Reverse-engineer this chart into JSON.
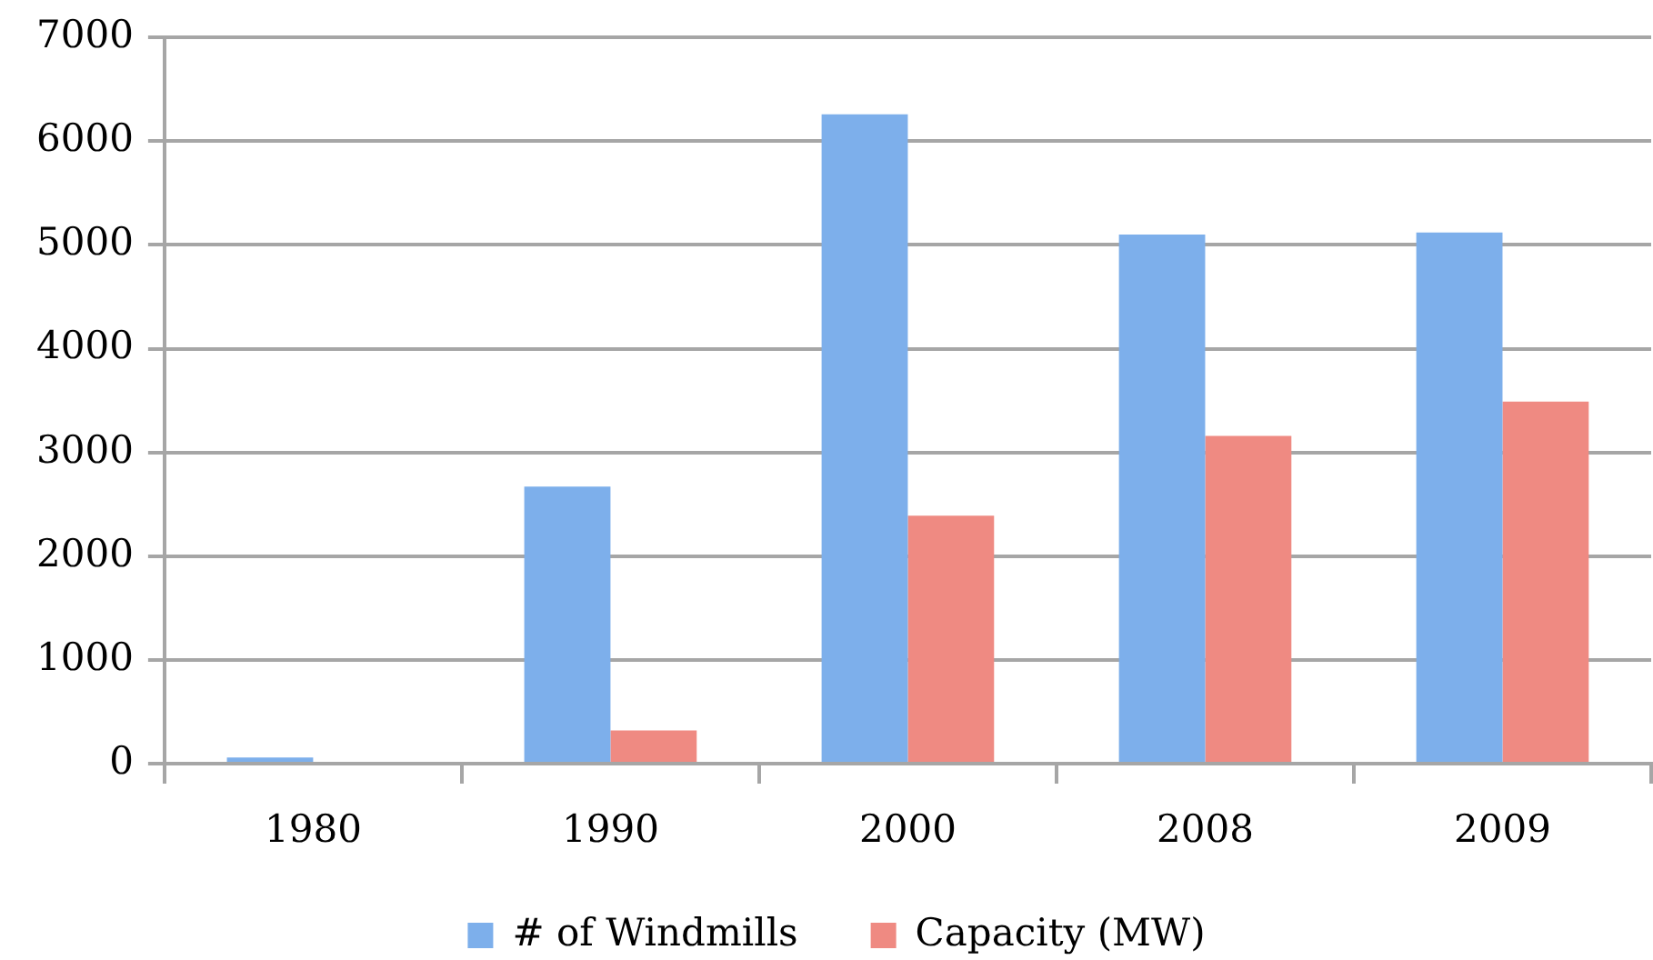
{
  "chart_data": {
    "type": "bar",
    "categories": [
      "1980",
      "1990",
      "2000",
      "2008",
      "2009"
    ],
    "series": [
      {
        "name": "# of Windmills",
        "color": "#7dafeb",
        "values": [
          60,
          2670,
          6260,
          5100,
          5120
        ]
      },
      {
        "name": "Capacity (MW)",
        "color": "#ef8a82",
        "values": [
          0,
          320,
          2390,
          3160,
          3490
        ]
      }
    ],
    "ylim": [
      0,
      7000
    ],
    "yticks": [
      0,
      1000,
      2000,
      3000,
      4000,
      5000,
      6000,
      7000
    ],
    "grid": "y",
    "legend": "bottom"
  }
}
